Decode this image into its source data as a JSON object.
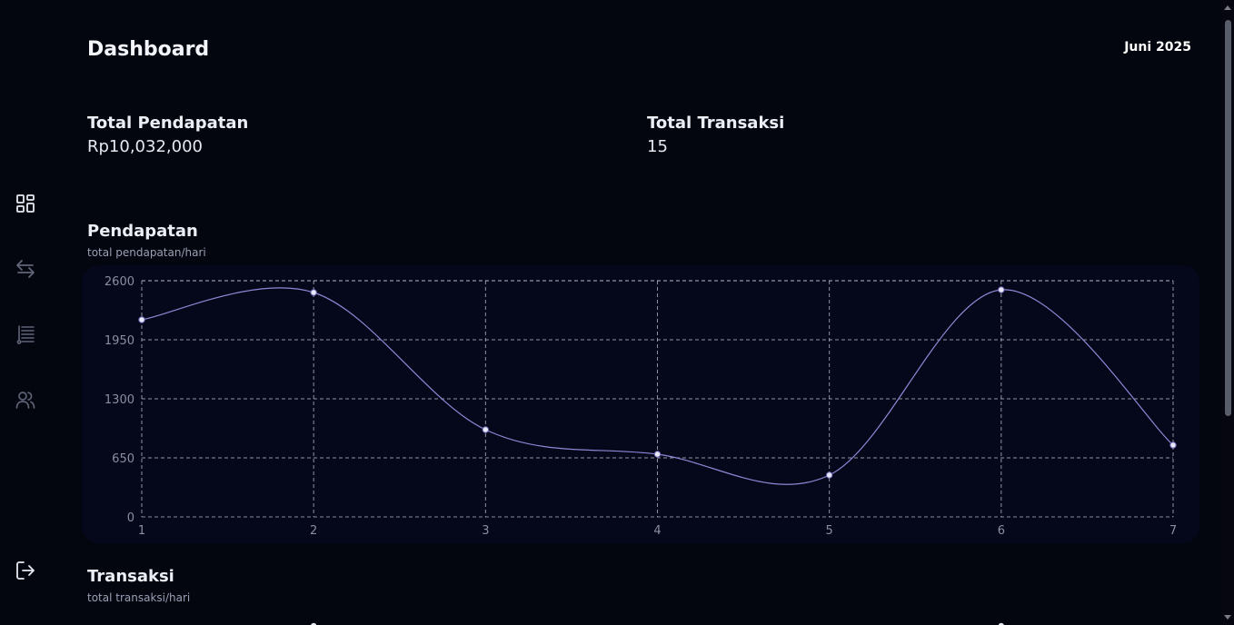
{
  "header": {
    "title": "Dashboard",
    "period": "Juni 2025"
  },
  "sidebar": {
    "items": [
      {
        "icon": "dashboard-icon",
        "active": true
      },
      {
        "icon": "transfer-icon",
        "active": false
      },
      {
        "icon": "list-icon",
        "active": false
      },
      {
        "icon": "users-icon",
        "active": false
      }
    ],
    "logout_icon": "logout-icon"
  },
  "stats": {
    "revenue": {
      "label": "Total Pendapatan",
      "value": "Rp10,032,000"
    },
    "transactions": {
      "label": "Total Transaksi",
      "value": "15"
    }
  },
  "revenue_section": {
    "title": "Pendapatan",
    "subtitle": "total pendapatan/hari"
  },
  "transactions_section": {
    "title": "Transaksi",
    "subtitle": "total transaksi/hari"
  },
  "colors": {
    "background": "#03050f",
    "line": "#8f87d6",
    "grid": "#bfc3cf",
    "point": "#e9e8f7"
  },
  "chart_data": {
    "type": "line",
    "x": [
      1,
      2,
      3,
      4,
      5,
      6,
      7
    ],
    "series": [
      {
        "values": [
          2170,
          2470,
          960,
          690,
          460,
          2500,
          790
        ]
      }
    ],
    "yticks": [
      0,
      650,
      1300,
      1950,
      2600
    ],
    "xticks": [
      "1",
      "2",
      "3",
      "4",
      "5",
      "6",
      "7"
    ],
    "ylim": [
      0,
      2600
    ],
    "xlim": [
      1,
      7
    ],
    "grid": true,
    "curve": "smooth"
  }
}
